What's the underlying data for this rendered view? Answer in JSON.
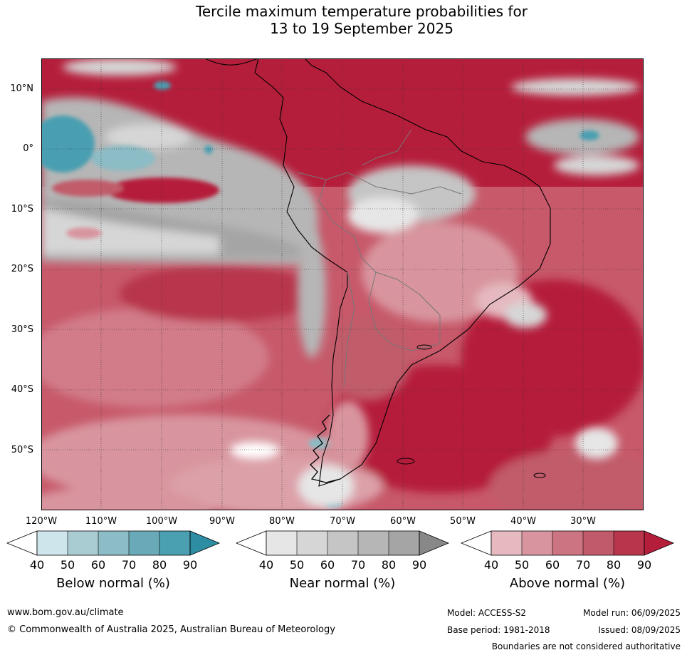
{
  "title": {
    "line1": "Tercile maximum temperature probabilities for",
    "line2": "13 to 19 September 2025"
  },
  "axes": {
    "lat_labels": [
      "10°N",
      "0°",
      "10°S",
      "20°S",
      "30°S",
      "40°S",
      "50°S"
    ],
    "lon_labels": [
      "120°W",
      "110°W",
      "100°W",
      "90°W",
      "80°W",
      "70°W",
      "60°W",
      "50°W",
      "40°W",
      "30°W"
    ]
  },
  "colorbars": [
    {
      "title": "Below normal (%)",
      "ticks": [
        "40",
        "50",
        "60",
        "70",
        "80",
        "90"
      ],
      "colors": [
        "#cfe5ec",
        "#a9ccd3",
        "#8cbcc5",
        "#6aaab8",
        "#4a9fb1",
        "#2d8ea3"
      ]
    },
    {
      "title": "Near normal (%)",
      "ticks": [
        "40",
        "50",
        "60",
        "70",
        "80",
        "90"
      ],
      "colors": [
        "#e6e6e6",
        "#d6d6d6",
        "#c5c5c5",
        "#b6b6b6",
        "#a5a5a5",
        "#888888"
      ]
    },
    {
      "title": "Above normal (%)",
      "ticks": [
        "40",
        "50",
        "60",
        "70",
        "80",
        "90"
      ],
      "colors": [
        "#e5b9bf",
        "#d8959f",
        "#cc7482",
        "#c15b6b",
        "#b8354b",
        "#b51e3b"
      ]
    }
  ],
  "footer": {
    "website": "www.bom.gov.au/climate",
    "copyright": "© Commonwealth of Australia 2025, Australian Bureau of Meteorology",
    "model": "Model: ACCESS-S2",
    "model_run": "Model run: 06/09/2025",
    "base_period": "Base period: 1981-2018",
    "issued": "Issued: 08/09/2025",
    "disclaimer": "Boundaries are not considered authoritative"
  },
  "map_colors": {
    "above_strong": "#b51e3b",
    "above_mid": "#c7596a",
    "above_light": "#d8959f",
    "near": "#b3b3b3",
    "near_light": "#d9d9d9",
    "below": "#4a9fb1"
  }
}
